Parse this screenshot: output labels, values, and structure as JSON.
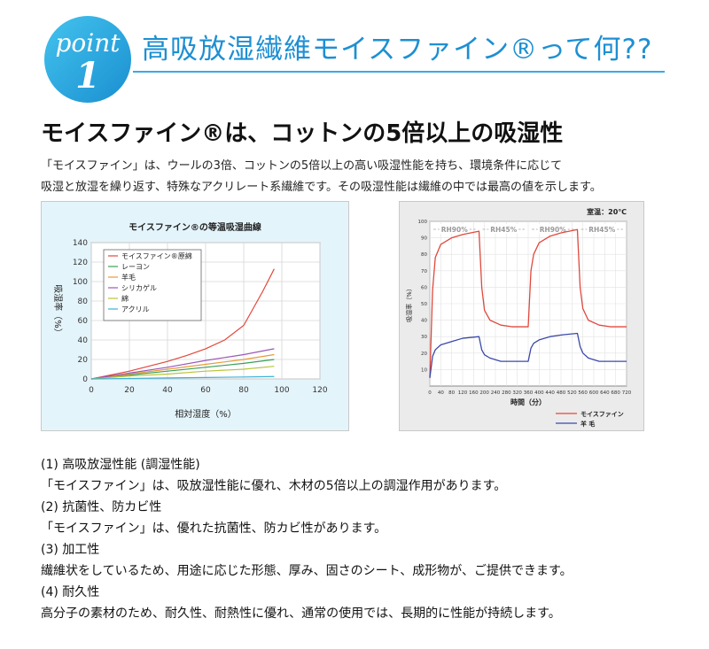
{
  "header": {
    "badge_word": "point",
    "badge_number": "1",
    "title": "高吸放湿繊維モイスファイン®って何??"
  },
  "subtitle": "モイスファイン®は、コットンの5倍以上の吸湿性",
  "intro": [
    "「モイスファイン」は、ウールの3倍、コットンの5倍以上の高い吸湿性能を持ち、環境条件に応じて",
    "吸湿と放湿を繰り返す、特殊なアクリレート系繊維です。その吸湿性能は繊維の中では最高の値を示します。"
  ],
  "colors": {
    "accent": "#1d8fd3",
    "panel_bg": "#e4f4fb",
    "moisfine": "#e0483c",
    "wool": "#3a48a8"
  },
  "chart_data": [
    {
      "type": "line",
      "title": "モイスファイン®の等温吸湿曲線",
      "xlabel": "相対湿度（%）",
      "ylabel": "吸湿率（%）",
      "xlim": [
        0,
        120
      ],
      "ylim": [
        0,
        140
      ],
      "xticks": [
        "0",
        "20",
        "40",
        "60",
        "80",
        "100",
        "120"
      ],
      "yticks": [
        "0",
        "20",
        "40",
        "60",
        "80",
        "100",
        "120",
        "140"
      ],
      "grid": true,
      "legend": "top-left",
      "series": [
        {
          "name": "モイスファイン®原綿",
          "color": "#e0483c",
          "x": [
            0,
            10,
            20,
            30,
            40,
            50,
            60,
            70,
            80,
            90,
            96
          ],
          "y": [
            0,
            4,
            8,
            13,
            18,
            24,
            31,
            40,
            55,
            90,
            113
          ]
        },
        {
          "name": "レーヨン",
          "color": "#3a9f55",
          "x": [
            0,
            20,
            40,
            60,
            80,
            96
          ],
          "y": [
            0,
            4,
            8,
            12,
            16,
            20
          ]
        },
        {
          "name": "羊毛",
          "color": "#e89a3a",
          "x": [
            0,
            20,
            40,
            60,
            80,
            96
          ],
          "y": [
            0,
            5,
            10,
            15,
            20,
            25
          ]
        },
        {
          "name": "シリカゲル",
          "color": "#9a58b8",
          "x": [
            0,
            20,
            40,
            60,
            80,
            96
          ],
          "y": [
            0,
            6,
            12,
            19,
            25,
            31
          ]
        },
        {
          "name": "綿",
          "color": "#b9c43a",
          "x": [
            0,
            20,
            40,
            60,
            80,
            96
          ],
          "y": [
            0,
            3,
            5,
            8,
            10,
            13
          ]
        },
        {
          "name": "アクリル",
          "color": "#3ab0d8",
          "x": [
            0,
            20,
            40,
            60,
            80,
            96
          ],
          "y": [
            0,
            0.5,
            1,
            1.5,
            2,
            2.5
          ]
        }
      ]
    },
    {
      "type": "line",
      "title": "",
      "xlabel": "時間（分）",
      "ylabel": "吸湿率（%）",
      "note": "室温：20℃",
      "xlim": [
        0,
        720
      ],
      "ylim": [
        0,
        100
      ],
      "xticks": [
        "0",
        "40",
        "80",
        "120",
        "160",
        "200",
        "240",
        "280",
        "320",
        "360",
        "400",
        "440",
        "480",
        "520",
        "560",
        "600",
        "640",
        "680",
        "720"
      ],
      "yticks": [
        "10",
        "20",
        "30",
        "40",
        "50",
        "60",
        "70",
        "80",
        "90",
        "100"
      ],
      "phases": [
        {
          "label": "RH90%",
          "from": 0,
          "to": 180
        },
        {
          "label": "RH45%",
          "from": 180,
          "to": 360
        },
        {
          "label": "RH90%",
          "from": 360,
          "to": 540
        },
        {
          "label": "RH45%",
          "from": 540,
          "to": 720
        }
      ],
      "grid": true,
      "legend": "bottom-right",
      "series": [
        {
          "name": "モイスファイン",
          "color": "#e0483c",
          "x": [
            0,
            10,
            20,
            40,
            80,
            120,
            180,
            190,
            200,
            220,
            260,
            300,
            360,
            370,
            380,
            400,
            440,
            480,
            540,
            550,
            560,
            580,
            620,
            660,
            720
          ],
          "y": [
            5,
            58,
            78,
            86,
            90,
            92,
            94,
            60,
            46,
            40,
            37,
            36,
            36,
            70,
            80,
            87,
            91,
            93,
            95,
            60,
            47,
            40,
            37,
            36,
            36
          ]
        },
        {
          "name": "羊 毛",
          "color": "#3a48a8",
          "x": [
            0,
            10,
            20,
            40,
            80,
            120,
            180,
            190,
            200,
            220,
            260,
            300,
            360,
            370,
            380,
            400,
            440,
            480,
            540,
            550,
            560,
            580,
            620,
            660,
            720
          ],
          "y": [
            5,
            18,
            22,
            25,
            27,
            29,
            30,
            22,
            19,
            17,
            15,
            15,
            15,
            23,
            26,
            28,
            30,
            31,
            32,
            24,
            20,
            17,
            15,
            15,
            15
          ]
        }
      ]
    }
  ],
  "sections": [
    {
      "heading": "(1) 高吸放湿性能 (調湿性能)",
      "body": "「モイスファイン」は、吸放湿性能に優れ、木材の5倍以上の調湿作用があります。"
    },
    {
      "heading": "(2) 抗菌性、防カビ性",
      "body": "「モイスファイン」は、優れた抗菌性、防カビ性があります。"
    },
    {
      "heading": "(3) 加工性",
      "body": "繊維状をしているため、用途に応じた形態、厚み、固さのシート、成形物が、ご提供できます。"
    },
    {
      "heading": "(4) 耐久性",
      "body": "高分子の素材のため、耐久性、耐熱性に優れ、通常の使用では、長期的に性能が持続します。"
    }
  ]
}
